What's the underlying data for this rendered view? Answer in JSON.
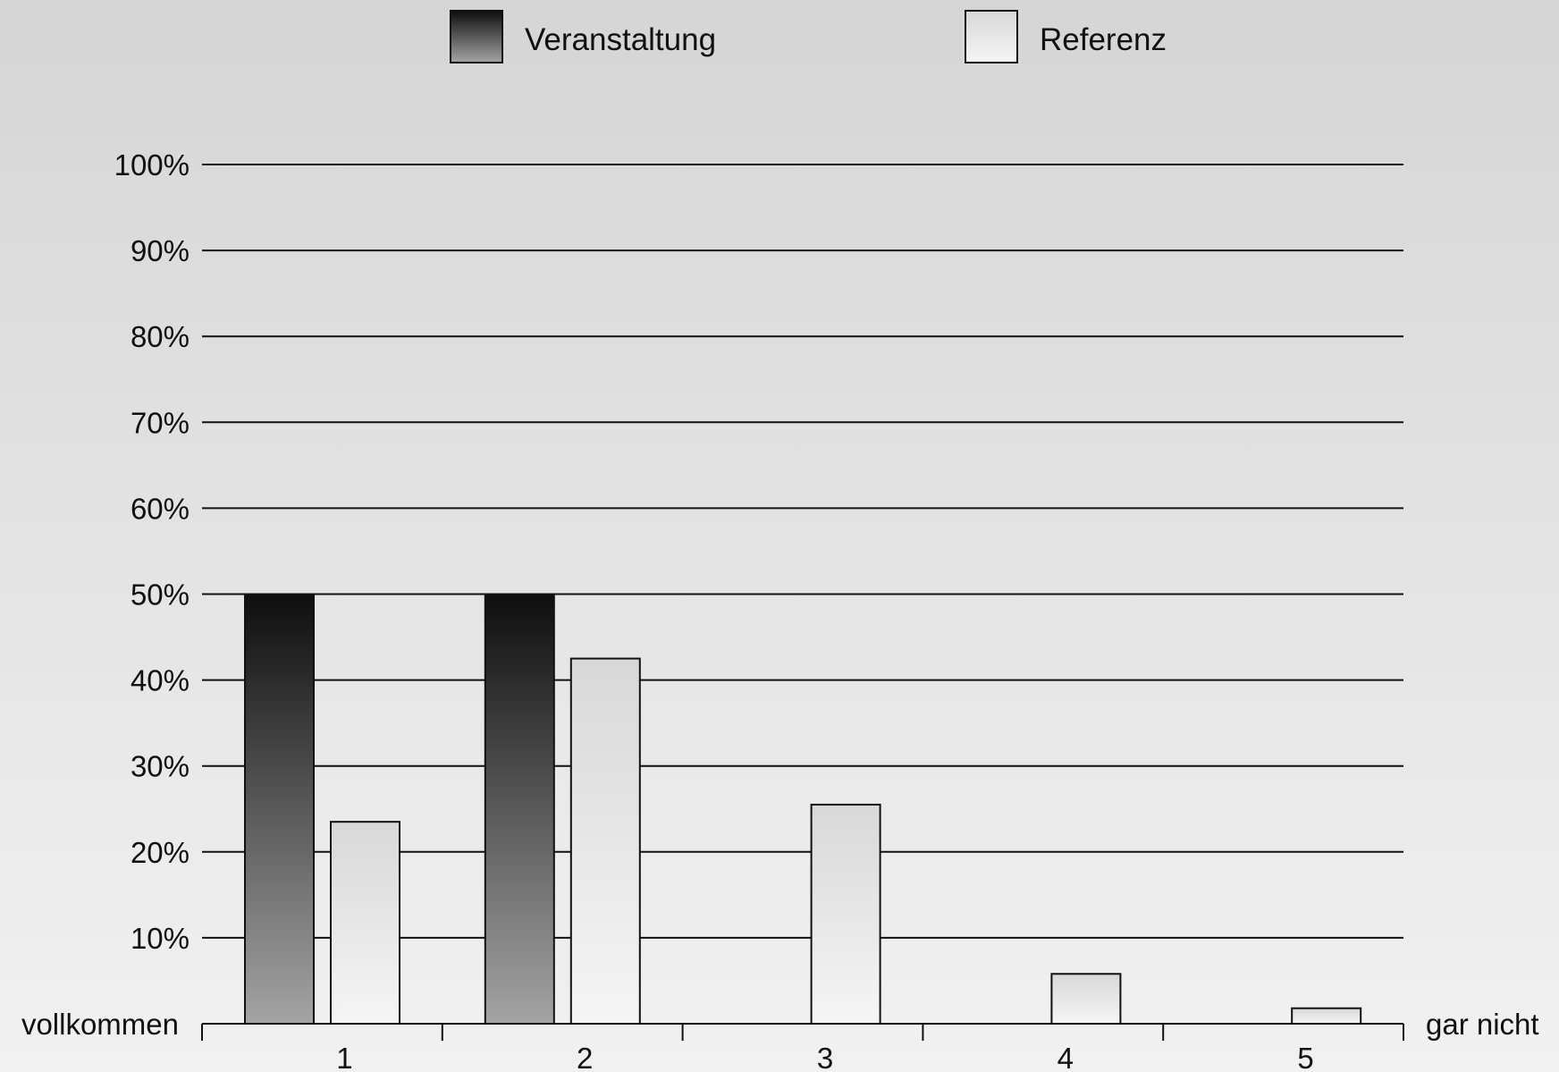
{
  "chart_data": {
    "type": "bar",
    "categories": [
      "1",
      "2",
      "3",
      "4",
      "5"
    ],
    "series": [
      {
        "name": "Veranstaltung",
        "values": [
          50,
          50,
          0,
          0,
          0
        ],
        "gradient_top": "#0e0e0e",
        "gradient_bottom": "#a4a4a4"
      },
      {
        "name": "Referenz",
        "values": [
          23.5,
          42.5,
          25.5,
          5.8,
          1.8
        ],
        "gradient_top": "#d8d8d8",
        "gradient_bottom": "#f5f5f5"
      }
    ],
    "ylim": [
      0,
      100
    ],
    "yticks": [
      10,
      20,
      30,
      40,
      50,
      60,
      70,
      80,
      90,
      100
    ],
    "ytick_suffix": "%",
    "grid": true,
    "legend_position": "top",
    "x_left_label": "vollkommen",
    "x_right_label": "gar nicht"
  }
}
